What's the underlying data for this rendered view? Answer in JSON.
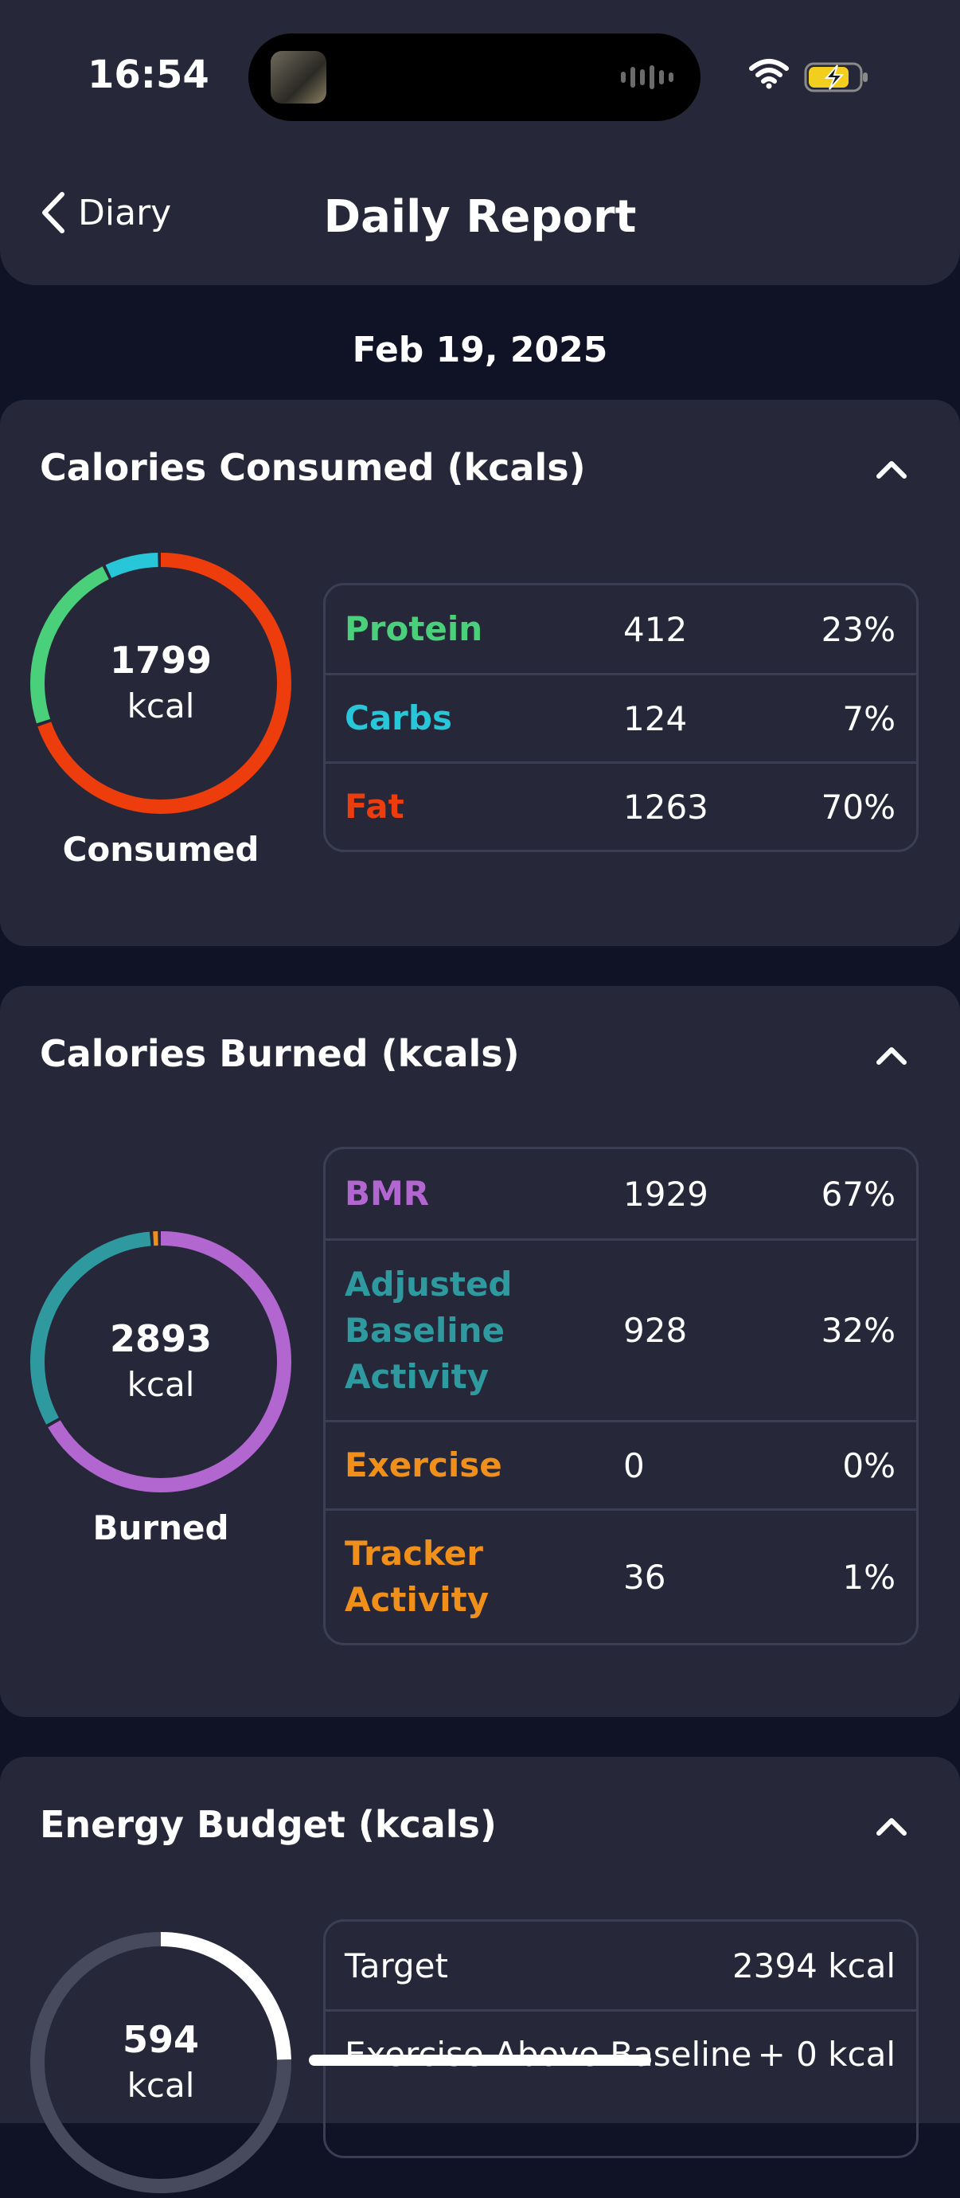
{
  "status_bar": {
    "time": "16:54"
  },
  "header": {
    "back_label": "Diary",
    "title": "Daily Report"
  },
  "date": "Feb 19, 2025",
  "colors": {
    "protein": "#4ad07a",
    "carbs": "#27c6d8",
    "fat": "#ee3d0c",
    "bmr": "#b266d0",
    "adjusted": "#2e9aa0",
    "exercise": "#f0901a",
    "tracker": "#f0901a",
    "card": "#262839",
    "background": "#101226"
  },
  "consumed": {
    "title": "Calories Consumed (kcals)",
    "total": "1799",
    "unit": "kcal",
    "caption": "Consumed",
    "rows": [
      {
        "name": "Protein",
        "value": "412",
        "pct": "23%",
        "fraction": 0.23
      },
      {
        "name": "Carbs",
        "value": "124",
        "pct": "7%",
        "fraction": 0.07
      },
      {
        "name": "Fat",
        "value": "1263",
        "pct": "70%",
        "fraction": 0.7
      }
    ]
  },
  "burned": {
    "title": "Calories Burned (kcals)",
    "total": "2893",
    "unit": "kcal",
    "caption": "Burned",
    "rows": [
      {
        "name": "BMR",
        "value": "1929",
        "pct": "67%",
        "fraction": 0.67
      },
      {
        "name": "Adjusted Baseline Activity",
        "value": "928",
        "pct": "32%",
        "fraction": 0.32
      },
      {
        "name": "Exercise",
        "value": "0",
        "pct": "0%",
        "fraction": 0.0
      },
      {
        "name": "Tracker Activity",
        "value": "36",
        "pct": "1%",
        "fraction": 0.01
      }
    ]
  },
  "budget": {
    "title": "Energy Budget (kcals)",
    "total": "594",
    "unit": "kcal",
    "fraction": 0.25,
    "rows": [
      {
        "name": "Target",
        "value": "2394 kcal"
      },
      {
        "name": "Exercise Above Baseline",
        "value": "+ 0 kcal"
      }
    ]
  }
}
